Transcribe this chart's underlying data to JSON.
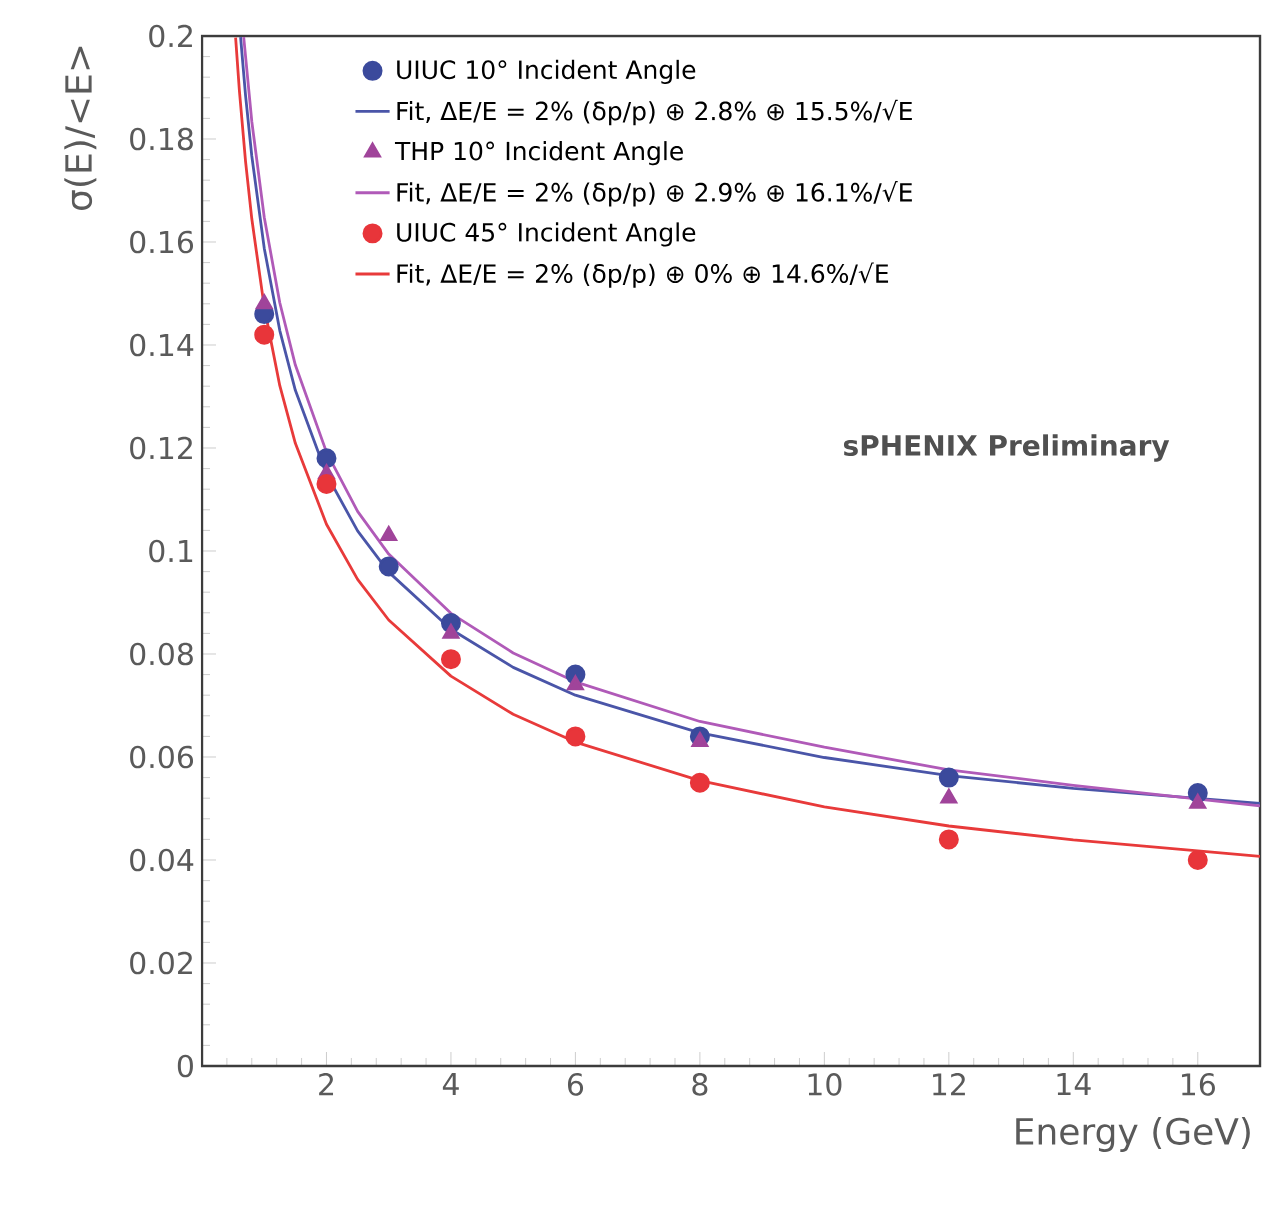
{
  "chart_data": {
    "type": "scatter",
    "xlabel": "Energy (GeV)",
    "ylabel": "σ(E)/<E>",
    "xlim": [
      0,
      17
    ],
    "ylim": [
      0,
      0.2
    ],
    "xticks": [
      {
        "value": 0,
        "label": null
      },
      2,
      4,
      6,
      8,
      10,
      12,
      14,
      16
    ],
    "yticks": [
      0,
      0.02,
      0.04,
      0.06,
      0.08,
      0.1,
      0.12,
      0.14,
      0.16,
      0.18,
      0.2
    ],
    "legend": "top",
    "grid": false,
    "annotations": [
      "sPHENIX Preliminary"
    ],
    "series": [
      {
        "name": "UIUC 10° Incident Angle",
        "marker": "circle",
        "color": "#3b4a9c",
        "x": [
          1,
          2,
          3,
          4,
          6,
          8,
          12,
          16
        ],
        "values": [
          0.146,
          0.118,
          0.097,
          0.086,
          0.076,
          0.064,
          0.056,
          0.053
        ]
      },
      {
        "name": "Fit, ΔE/E = 2% (δp/p) ⊕ 2.8% ⊕ 15.5%/√E",
        "type": "line",
        "line_style": "solid",
        "color": "#4a55a8",
        "x": [
          0.62,
          0.7,
          0.8,
          1,
          1.25,
          1.5,
          2,
          2.5,
          3,
          4,
          5,
          6,
          8,
          10,
          12,
          14,
          17
        ],
        "values": [
          0.1998,
          0.1884,
          0.1767,
          0.1588,
          0.1428,
          0.1312,
          0.1149,
          0.1039,
          0.0959,
          0.0848,
          0.0774,
          0.072,
          0.0647,
          0.0599,
          0.0564,
          0.0539,
          0.051
        ]
      },
      {
        "name": "THP 10° Incident Angle",
        "marker": "triangle",
        "color": "#a0449a",
        "x": [
          1,
          2,
          3,
          4,
          6,
          8,
          12,
          16
        ],
        "values": [
          0.148,
          0.115,
          0.103,
          0.084,
          0.074,
          0.063,
          0.052,
          0.051
        ]
      },
      {
        "name": "Fit, ΔE/E = 2% (δp/p) ⊕ 2.9% ⊕ 16.1%/√E",
        "type": "line",
        "line_style": "solid",
        "color": "#b05ab8",
        "x": [
          0.67,
          0.8,
          1,
          1.25,
          1.5,
          2,
          2.5,
          3,
          4,
          5,
          6,
          8,
          10,
          12,
          14,
          17
        ],
        "values": [
          0.1998,
          0.1834,
          0.1648,
          0.1482,
          0.1361,
          0.1192,
          0.1077,
          0.0994,
          0.0879,
          0.0802,
          0.0746,
          0.0669,
          0.0619,
          0.0575,
          0.0545,
          0.0505
        ]
      },
      {
        "name": "UIUC 45° Incident Angle",
        "marker": "circle",
        "color": "#e8353a",
        "x": [
          1,
          2,
          4,
          6,
          8,
          12,
          16
        ],
        "values": [
          0.142,
          0.113,
          0.079,
          0.064,
          0.055,
          0.044,
          0.04
        ]
      },
      {
        "name": "Fit, ΔE/E = 2% (δp/p) ⊕ 0% ⊕ 14.6%/√E",
        "type": "line",
        "line_style": "solid",
        "color": "#e83a3a",
        "x": [
          0.54,
          0.6,
          0.7,
          0.8,
          1,
          1.25,
          1.5,
          2,
          2.5,
          3,
          4,
          5,
          6,
          8,
          10,
          12,
          14,
          17
        ],
        "values": [
          0.1997,
          0.1895,
          0.1756,
          0.1645,
          0.1474,
          0.1321,
          0.1209,
          0.1052,
          0.0945,
          0.0866,
          0.0757,
          0.0683,
          0.0629,
          0.0554,
          0.0503,
          0.0466,
          0.0439,
          0.0407
        ]
      }
    ]
  }
}
